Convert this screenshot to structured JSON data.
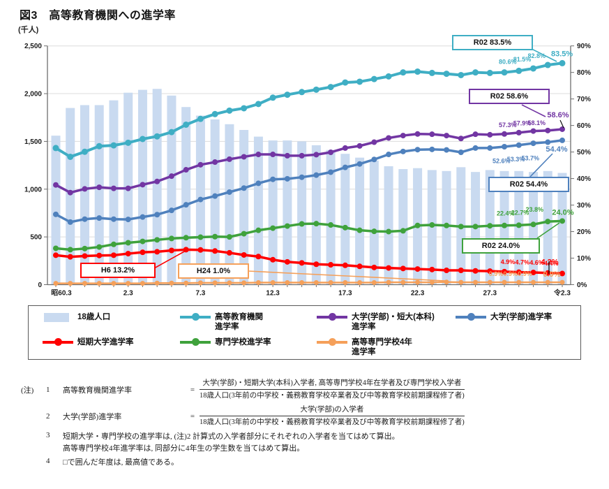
{
  "chart_data": {
    "type": "combo-bar-line",
    "title": "図3　高等教育機関への進学率",
    "left_axis": {
      "label": "(千人)",
      "min": 0,
      "max": 2500,
      "ticks": [
        {
          "v": 2500,
          "label": "2,500"
        },
        {
          "v": 2000,
          "label": "2,000"
        },
        {
          "v": 1500,
          "label": "1,500"
        },
        {
          "v": 1000,
          "label": "1,000"
        },
        {
          "v": 500,
          "label": "500"
        },
        {
          "v": 0,
          "label": "0"
        }
      ]
    },
    "right_axis": {
      "min": 0,
      "max": 90,
      "ticks": [
        {
          "v": 90,
          "label": "90%"
        },
        {
          "v": 80,
          "label": "80%"
        },
        {
          "v": 70,
          "label": "70%"
        },
        {
          "v": 60,
          "label": "60%"
        },
        {
          "v": 50,
          "label": "50%"
        },
        {
          "v": 40,
          "label": "40%"
        },
        {
          "v": 30,
          "label": "30%"
        },
        {
          "v": 20,
          "label": "20%"
        },
        {
          "v": 10,
          "label": "10%"
        },
        {
          "v": 0,
          "label": "0%"
        }
      ]
    },
    "x": {
      "years": [
        1985,
        1986,
        1987,
        1988,
        1989,
        1990,
        1991,
        1992,
        1993,
        1994,
        1995,
        1996,
        1997,
        1998,
        1999,
        2000,
        2001,
        2002,
        2003,
        2004,
        2005,
        2006,
        2007,
        2008,
        2009,
        2010,
        2011,
        2012,
        2013,
        2014,
        2015,
        2016,
        2017,
        2018,
        2019,
        2020
      ],
      "tick_labels": [
        {
          "index": 0,
          "label": "昭60.3"
        },
        {
          "index": 5,
          "label": "2.3"
        },
        {
          "index": 10,
          "label": "7.3"
        },
        {
          "index": 15,
          "label": "12.3"
        },
        {
          "index": 20,
          "label": "17.3"
        },
        {
          "index": 25,
          "label": "22.3"
        },
        {
          "index": 30,
          "label": "27.3"
        },
        {
          "index": 35,
          "label": "令2.3"
        }
      ]
    },
    "bars": {
      "name": "18歳人口",
      "unit": "千人",
      "color": "#C9DAF0",
      "values": [
        1560,
        1850,
        1880,
        1880,
        1930,
        2010,
        2040,
        2050,
        1980,
        1860,
        1770,
        1730,
        1680,
        1620,
        1550,
        1510,
        1510,
        1500,
        1460,
        1410,
        1370,
        1330,
        1300,
        1240,
        1210,
        1220,
        1200,
        1190,
        1230,
        1180,
        1200,
        1190,
        1190,
        1180,
        1190,
        1170
      ]
    },
    "series": [
      {
        "name": "高等教育機関進学率",
        "color": "#3FAEC4",
        "axis": "right",
        "values": [
          51.5,
          48.2,
          50.1,
          52.2,
          52.5,
          53.5,
          54.9,
          55.9,
          57.5,
          60.3,
          62.5,
          64.3,
          65.6,
          66.5,
          68.1,
          70.5,
          71.6,
          72.6,
          73.5,
          74.5,
          76.2,
          76.5,
          77.5,
          78.5,
          80.0,
          80.3,
          79.8,
          79.5,
          79.0,
          80.0,
          79.8,
          80.0,
          80.6,
          81.5,
          82.8,
          83.5
        ],
        "end_labels": [
          "80.6%",
          "81.5%",
          "82.8%"
        ],
        "final_label": "83.5%"
      },
      {
        "name": "大学(学部)・短大(本科)進学率",
        "color": "#7236A3",
        "axis": "right",
        "values": [
          37.6,
          34.7,
          36.1,
          36.7,
          36.3,
          36.3,
          37.7,
          38.9,
          40.9,
          43.3,
          45.2,
          46.2,
          47.3,
          48.2,
          49.1,
          49.1,
          48.6,
          48.6,
          49.0,
          49.9,
          51.5,
          52.3,
          53.7,
          55.3,
          56.2,
          56.8,
          56.7,
          56.2,
          55.1,
          56.7,
          56.5,
          56.8,
          57.3,
          57.9,
          58.1,
          58.6
        ],
        "end_labels": [
          "57.3%",
          "57.9%",
          "58.1%"
        ],
        "final_label": "58.6%"
      },
      {
        "name": "大学(学部)進学率",
        "color": "#4F81BD",
        "axis": "right",
        "values": [
          26.5,
          23.6,
          24.7,
          25.1,
          24.7,
          24.6,
          25.5,
          26.4,
          28.0,
          30.1,
          32.1,
          33.4,
          34.9,
          36.4,
          38.2,
          39.7,
          39.9,
          40.5,
          41.3,
          42.4,
          44.2,
          45.5,
          47.2,
          49.1,
          50.2,
          50.9,
          51.0,
          50.8,
          49.9,
          51.5,
          51.5,
          52.0,
          52.6,
          53.3,
          53.7,
          54.4
        ],
        "end_labels": [
          "52.6%",
          "53.3%",
          "53.7%"
        ],
        "final_label": "54.4%"
      },
      {
        "name": "専門学校進学率",
        "color": "#3FA23C",
        "axis": "right",
        "values": [
          13.7,
          13.2,
          13.6,
          14.2,
          15.2,
          15.8,
          16.3,
          16.9,
          17.4,
          17.7,
          17.9,
          18.1,
          18.0,
          19.2,
          20.5,
          21.3,
          22.1,
          22.9,
          23.0,
          22.5,
          21.5,
          20.5,
          20.1,
          20.0,
          20.3,
          22.3,
          22.5,
          22.3,
          21.9,
          21.9,
          22.2,
          22.3,
          22.4,
          22.7,
          23.8,
          24.0
        ],
        "end_labels": [
          "22.4%",
          "22.7%",
          "23.8%"
        ],
        "final_label": "24.0%"
      },
      {
        "name": "短期大学進学率",
        "color": "#FF0000",
        "axis": "right",
        "values": [
          11.1,
          10.5,
          10.8,
          11.0,
          11.1,
          11.7,
          12.2,
          12.4,
          12.9,
          13.2,
          13.1,
          12.7,
          12.0,
          11.2,
          10.6,
          9.4,
          8.6,
          8.2,
          7.7,
          7.5,
          7.3,
          6.9,
          6.5,
          6.3,
          6.1,
          5.9,
          5.7,
          5.4,
          5.4,
          5.2,
          5.1,
          4.9,
          4.7,
          4.6,
          4.4,
          4.2
        ],
        "end_labels": [
          "4.9%",
          "4.7%",
          "4.6%",
          "4.4%"
        ],
        "final_label": "4.2%"
      },
      {
        "name": "高等専門学校4年進学率",
        "color": "#F5A05A",
        "axis": "right",
        "values": [
          0.5,
          0.5,
          0.5,
          0.5,
          0.5,
          0.5,
          0.5,
          0.6,
          0.6,
          0.6,
          0.7,
          0.7,
          0.7,
          0.7,
          0.8,
          0.8,
          0.8,
          0.8,
          0.8,
          0.8,
          0.8,
          0.8,
          0.8,
          0.9,
          0.9,
          0.9,
          0.9,
          1.0,
          0.9,
          0.9,
          0.9,
          0.9,
          0.9,
          0.9,
          0.9,
          0.9
        ],
        "end_labels": [
          "0.9%",
          "0.9%",
          "0.9%"
        ],
        "final_label": "0.9%"
      }
    ],
    "callouts": [
      {
        "text": "R02  83.5%",
        "color": "#3FAEC4",
        "series": "高等教育機関進学率"
      },
      {
        "text": "R02  58.6%",
        "color": "#7236A3",
        "series": "大学(学部)・短大(本科)進学率"
      },
      {
        "text": "R02  54.4%",
        "color": "#4F81BD",
        "series": "大学(学部)進学率"
      },
      {
        "text": "R02 24.0%",
        "color": "#3FA23C",
        "series": "専門学校進学率"
      },
      {
        "text": "H6 13.2%",
        "color": "#FF0000",
        "series": "短期大学進学率"
      },
      {
        "text": "H24 1.0%",
        "color": "#F5A05A",
        "series": "高等専門学校4年進学率"
      }
    ],
    "grid": "horizontal-major",
    "legend_position": "bottom"
  },
  "legend": {
    "items": [
      {
        "type": "bar",
        "color": "#C9DAF0",
        "label": "18歳人口",
        "label2": ""
      },
      {
        "type": "line",
        "color": "#3FAEC4",
        "label": "高等教育機関",
        "label2": "進学率"
      },
      {
        "type": "line",
        "color": "#7236A3",
        "label": "大学(学部)・短大(本科)",
        "label2": "進学率"
      },
      {
        "type": "line",
        "color": "#4F81BD",
        "label": "大学(学部)進学率",
        "label2": ""
      },
      {
        "type": "line",
        "color": "#FF0000",
        "label": "短期大学進学率",
        "label2": ""
      },
      {
        "type": "line",
        "color": "#3FA23C",
        "label": "専門学校進学率",
        "label2": ""
      },
      {
        "type": "line",
        "color": "#F5A05A",
        "label": "高等専門学校4年",
        "label2": "進学率"
      }
    ]
  },
  "notes": {
    "prefix": "(注)",
    "items": [
      {
        "no": "1",
        "term": "高等教育機関進学率",
        "numerator": "大学(学部)・短期大学(本科)入学者, 高等専門学校4年在学者及び専門学校入学者",
        "denominator": "18歳人口(3年前の中学校・義務教育学校卒業者及び中等教育学校前期課程修了者)"
      },
      {
        "no": "2",
        "term": "大学(学部)進学率",
        "numerator": "大学(学部)の入学者",
        "denominator": "18歳人口(3年前の中学校・義務教育学校卒業者及び中等教育学校前期課程修了者)"
      },
      {
        "no": "3",
        "lines": [
          "短期大学・専門学校の進学率は, (注)2 計算式の入学者部分にそれぞれの入学者を当てはめて算出。",
          "高等専門学校4年進学率は, 同部分に4年生の学生数を当てはめて算出。"
        ]
      },
      {
        "no": "4",
        "lines": [
          "□で囲んだ年度は, 最高値である。"
        ]
      }
    ]
  }
}
